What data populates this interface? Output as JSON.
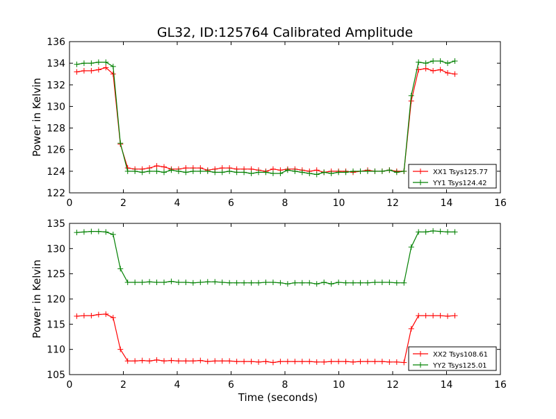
{
  "figure": {
    "title": "GL32, ID:125764 Calibrated Amplitude"
  },
  "chart_data": [
    {
      "type": "line",
      "title": "GL32, ID:125764 Calibrated Amplitude",
      "xlabel": "",
      "ylabel": "Power in Kelvin",
      "xlim": [
        0,
        16
      ],
      "ylim": [
        122,
        136
      ],
      "xticks": [
        0,
        2,
        4,
        6,
        8,
        10,
        12,
        14,
        16
      ],
      "yticks": [
        122,
        124,
        126,
        128,
        130,
        132,
        134,
        136
      ],
      "grid": false,
      "legend_position": "lower-right",
      "marker": "+",
      "x": [
        0.27,
        0.54,
        0.81,
        1.08,
        1.35,
        1.62,
        1.89,
        2.16,
        2.43,
        2.7,
        2.97,
        3.24,
        3.51,
        3.78,
        4.05,
        4.32,
        4.59,
        4.86,
        5.13,
        5.4,
        5.67,
        5.94,
        6.21,
        6.48,
        6.75,
        7.02,
        7.29,
        7.56,
        7.83,
        8.1,
        8.37,
        8.64,
        8.91,
        9.18,
        9.45,
        9.72,
        9.99,
        10.26,
        10.53,
        10.8,
        11.07,
        11.34,
        11.61,
        11.88,
        12.15,
        12.42,
        12.69,
        12.96,
        13.23,
        13.5,
        13.77,
        14.04,
        14.31
      ],
      "series": [
        {
          "name": "XX1 Tsys125.77",
          "color": "#ff0000",
          "values": [
            133.2,
            133.3,
            133.3,
            133.4,
            133.6,
            133.0,
            126.5,
            124.3,
            124.2,
            124.2,
            124.3,
            124.5,
            124.4,
            124.2,
            124.2,
            124.3,
            124.3,
            124.3,
            124.1,
            124.2,
            124.3,
            124.3,
            124.2,
            124.2,
            124.2,
            124.1,
            124.0,
            124.2,
            124.1,
            124.2,
            124.2,
            124.1,
            124.0,
            124.1,
            123.9,
            124.0,
            124.0,
            124.0,
            123.9,
            124.0,
            124.1,
            124.0,
            124.0,
            124.1,
            124.0,
            124.0,
            130.5,
            133.4,
            133.5,
            133.3,
            133.4,
            133.1,
            133.0
          ]
        },
        {
          "name": "YY1 Tsys124.42",
          "color": "#008000",
          "values": [
            133.9,
            134.0,
            134.0,
            134.1,
            134.1,
            133.7,
            126.6,
            124.0,
            124.0,
            123.9,
            124.0,
            124.0,
            123.9,
            124.1,
            124.0,
            123.9,
            124.0,
            124.0,
            124.0,
            123.9,
            123.9,
            124.0,
            123.9,
            123.9,
            123.8,
            123.9,
            123.9,
            123.8,
            123.8,
            124.1,
            124.0,
            123.9,
            123.8,
            123.7,
            123.9,
            123.8,
            123.9,
            123.9,
            124.0,
            124.0,
            124.0,
            124.0,
            124.0,
            124.1,
            123.9,
            124.0,
            131.0,
            134.1,
            134.0,
            134.2,
            134.2,
            134.0,
            134.2
          ]
        }
      ]
    },
    {
      "type": "line",
      "title": "",
      "xlabel": "Time (seconds)",
      "ylabel": "Power in Kelvin",
      "xlim": [
        0,
        16
      ],
      "ylim": [
        105,
        135
      ],
      "xticks": [
        0,
        2,
        4,
        6,
        8,
        10,
        12,
        14,
        16
      ],
      "yticks": [
        105,
        110,
        115,
        120,
        125,
        130,
        135
      ],
      "grid": false,
      "legend_position": "lower-right",
      "marker": "+",
      "x": [
        0.27,
        0.54,
        0.81,
        1.08,
        1.35,
        1.62,
        1.89,
        2.16,
        2.43,
        2.7,
        2.97,
        3.24,
        3.51,
        3.78,
        4.05,
        4.32,
        4.59,
        4.86,
        5.13,
        5.4,
        5.67,
        5.94,
        6.21,
        6.48,
        6.75,
        7.02,
        7.29,
        7.56,
        7.83,
        8.1,
        8.37,
        8.64,
        8.91,
        9.18,
        9.45,
        9.72,
        9.99,
        10.26,
        10.53,
        10.8,
        11.07,
        11.34,
        11.61,
        11.88,
        12.15,
        12.42,
        12.69,
        12.96,
        13.23,
        13.5,
        13.77,
        14.04,
        14.31
      ],
      "series": [
        {
          "name": "XX2 Tsys108.61",
          "color": "#ff0000",
          "values": [
            116.6,
            116.7,
            116.7,
            116.9,
            117.0,
            116.3,
            110.0,
            107.7,
            107.7,
            107.8,
            107.7,
            107.9,
            107.7,
            107.8,
            107.7,
            107.7,
            107.7,
            107.8,
            107.6,
            107.7,
            107.7,
            107.7,
            107.6,
            107.6,
            107.6,
            107.5,
            107.6,
            107.4,
            107.6,
            107.6,
            107.6,
            107.6,
            107.6,
            107.5,
            107.5,
            107.6,
            107.6,
            107.6,
            107.5,
            107.6,
            107.6,
            107.6,
            107.6,
            107.5,
            107.5,
            107.4,
            114.1,
            116.7,
            116.7,
            116.7,
            116.7,
            116.6,
            116.7
          ]
        },
        {
          "name": "YY2 Tsys125.01",
          "color": "#008000",
          "values": [
            133.2,
            133.3,
            133.4,
            133.4,
            133.3,
            132.8,
            126.0,
            123.3,
            123.3,
            123.3,
            123.4,
            123.3,
            123.3,
            123.5,
            123.3,
            123.3,
            123.2,
            123.3,
            123.4,
            123.4,
            123.3,
            123.2,
            123.2,
            123.2,
            123.2,
            123.2,
            123.3,
            123.3,
            123.2,
            123.0,
            123.2,
            123.2,
            123.2,
            123.0,
            123.3,
            123.0,
            123.3,
            123.2,
            123.2,
            123.2,
            123.2,
            123.3,
            123.3,
            123.3,
            123.2,
            123.2,
            130.3,
            133.3,
            133.3,
            133.5,
            133.4,
            133.3,
            133.3
          ]
        }
      ]
    }
  ]
}
